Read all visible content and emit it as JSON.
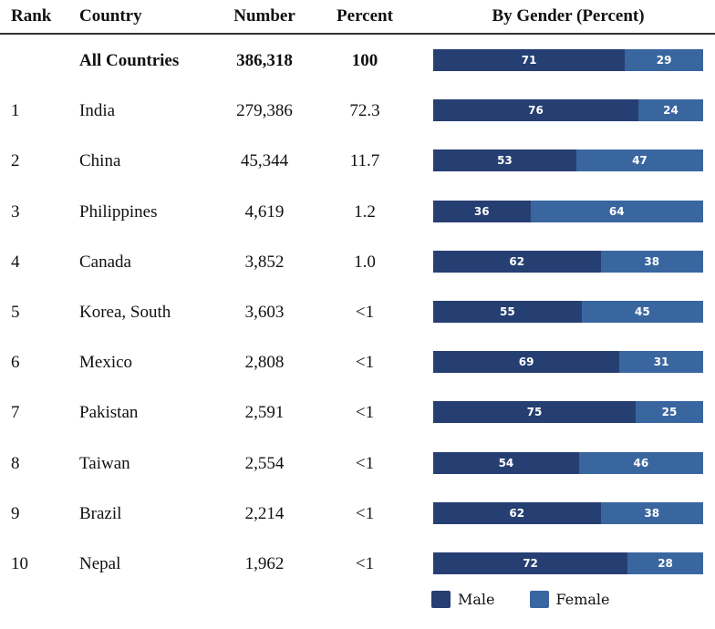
{
  "chart_data": {
    "type": "table",
    "title": "By Gender (Percent)",
    "columns": [
      "Rank",
      "Country",
      "Number",
      "Percent",
      "By Gender (Percent)"
    ],
    "rows": [
      {
        "rank": "",
        "country": "All Countries",
        "number": "386,318",
        "percent": "100",
        "male": 71,
        "female": 29
      },
      {
        "rank": "1",
        "country": "India",
        "number": "279,386",
        "percent": "72.3",
        "male": 76,
        "female": 24
      },
      {
        "rank": "2",
        "country": "China",
        "number": "45,344",
        "percent": "11.7",
        "male": 53,
        "female": 47
      },
      {
        "rank": "3",
        "country": "Philippines",
        "number": "4,619",
        "percent": "1.2",
        "male": 36,
        "female": 64
      },
      {
        "rank": "4",
        "country": "Canada",
        "number": "3,852",
        "percent": "1.0",
        "male": 62,
        "female": 38
      },
      {
        "rank": "5",
        "country": "Korea, South",
        "number": "3,603",
        "percent": "<1",
        "male": 55,
        "female": 45
      },
      {
        "rank": "6",
        "country": "Mexico",
        "number": "2,808",
        "percent": "<1",
        "male": 69,
        "female": 31
      },
      {
        "rank": "7",
        "country": "Pakistan",
        "number": "2,591",
        "percent": "<1",
        "male": 75,
        "female": 25
      },
      {
        "rank": "8",
        "country": "Taiwan",
        "number": "2,554",
        "percent": "<1",
        "male": 54,
        "female": 46
      },
      {
        "rank": "9",
        "country": "Brazil",
        "number": "2,214",
        "percent": "<1",
        "male": 62,
        "female": 38
      },
      {
        "rank": "10",
        "country": "Nepal",
        "number": "1,962",
        "percent": "<1",
        "male": 72,
        "female": 28
      }
    ],
    "legend": [
      {
        "name": "Male",
        "color": "#263f72"
      },
      {
        "name": "Female",
        "color": "#3a66a0"
      }
    ],
    "legend_placement": "bottom-right"
  }
}
